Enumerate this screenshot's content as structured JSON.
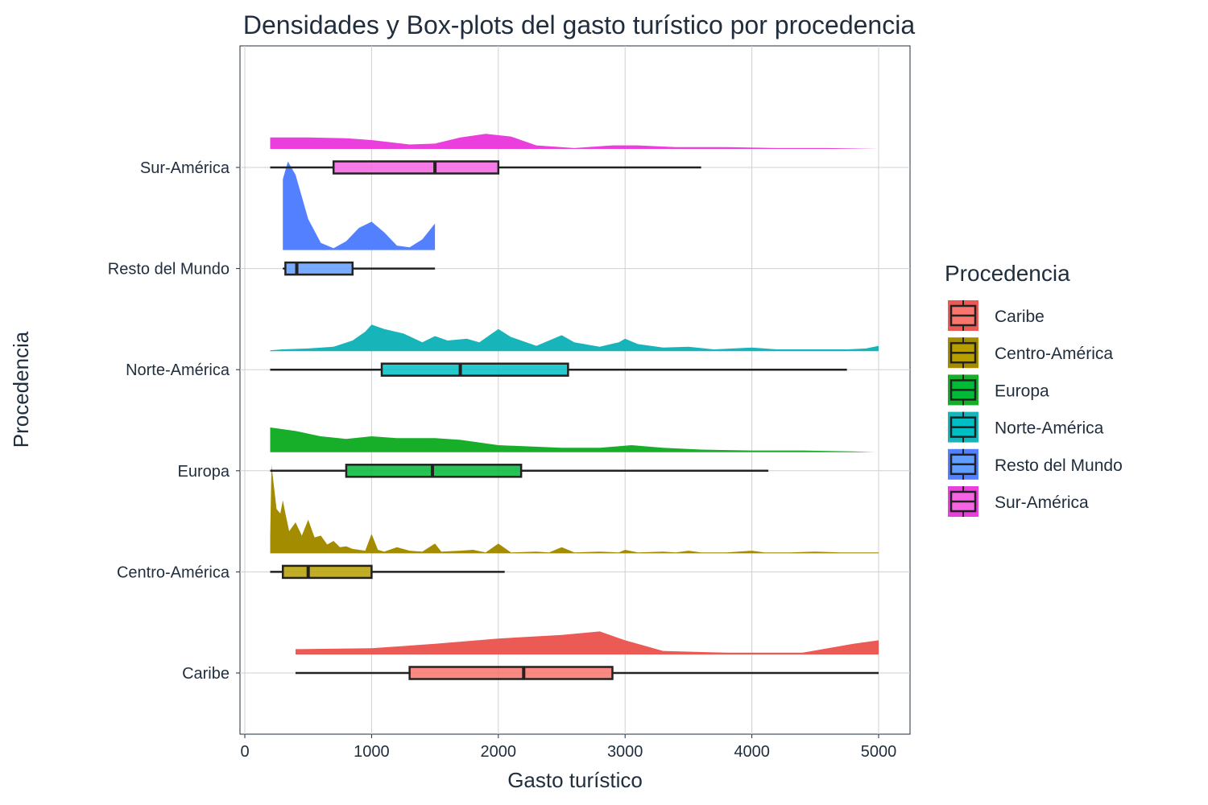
{
  "chart_data": {
    "type": "ridgeline-boxplot",
    "title": "Densidades y Box-plots del gasto turístico por procedencia",
    "xlabel": "Gasto turístico",
    "ylabel": "Procedencia",
    "xlim": [
      0,
      5000
    ],
    "x_ticks": [
      0,
      1000,
      2000,
      3000,
      4000,
      5000
    ],
    "x_tick_labels": [
      "0",
      "1000",
      "2000",
      "3000",
      "4000",
      "5000"
    ],
    "grid": true,
    "legend": {
      "title": "Procedencia",
      "placement": "right",
      "entries": [
        "Caribe",
        "Centro-América",
        "Europa",
        "Norte-América",
        "Resto del Mundo",
        "Sur-América"
      ]
    },
    "categories": [
      "Caribe",
      "Centro-América",
      "Europa",
      "Norte-América",
      "Resto del Mundo",
      "Sur-América"
    ],
    "series": [
      {
        "name": "Caribe",
        "color": "#F8766D",
        "fill": "#EB5A55",
        "box": {
          "whisker_low": 400,
          "q1": 1300,
          "median": 2200,
          "q3": 2900,
          "whisker_high": 5000
        },
        "density": [
          [
            400,
            0.06
          ],
          [
            1000,
            0.07
          ],
          [
            1500,
            0.12
          ],
          [
            2000,
            0.18
          ],
          [
            2500,
            0.22
          ],
          [
            2800,
            0.26
          ],
          [
            3000,
            0.16
          ],
          [
            3300,
            0.04
          ],
          [
            3800,
            0.02
          ],
          [
            4400,
            0.02
          ],
          [
            4800,
            0.12
          ],
          [
            5000,
            0.16
          ]
        ]
      },
      {
        "name": "Centro-América",
        "color": "#B79F00",
        "fill": "#A38C00",
        "box": {
          "whisker_low": 200,
          "q1": 300,
          "median": 500,
          "q3": 1000,
          "whisker_high": 2050
        },
        "density": [
          [
            200,
            0.2
          ],
          [
            210,
            1.0
          ],
          [
            250,
            0.5
          ],
          [
            280,
            0.45
          ],
          [
            300,
            0.6
          ],
          [
            320,
            0.45
          ],
          [
            350,
            0.25
          ],
          [
            400,
            0.35
          ],
          [
            450,
            0.2
          ],
          [
            500,
            0.38
          ],
          [
            550,
            0.18
          ],
          [
            600,
            0.2
          ],
          [
            650,
            0.1
          ],
          [
            700,
            0.14
          ],
          [
            750,
            0.07
          ],
          [
            800,
            0.08
          ],
          [
            850,
            0.05
          ],
          [
            900,
            0.04
          ],
          [
            950,
            0.03
          ],
          [
            1000,
            0.22
          ],
          [
            1050,
            0.04
          ],
          [
            1100,
            0.02
          ],
          [
            1200,
            0.07
          ],
          [
            1300,
            0.03
          ],
          [
            1400,
            0.02
          ],
          [
            1500,
            0.11
          ],
          [
            1550,
            0.02
          ],
          [
            1700,
            0.03
          ],
          [
            1800,
            0.04
          ],
          [
            1900,
            0.01
          ],
          [
            2000,
            0.11
          ],
          [
            2100,
            0.01
          ],
          [
            2300,
            0.02
          ],
          [
            2400,
            0.01
          ],
          [
            2500,
            0.07
          ],
          [
            2600,
            0.01
          ],
          [
            2800,
            0.02
          ],
          [
            2950,
            0.01
          ],
          [
            3000,
            0.04
          ],
          [
            3100,
            0.01
          ],
          [
            3300,
            0.02
          ],
          [
            3400,
            0.01
          ],
          [
            3500,
            0.03
          ],
          [
            3600,
            0.01
          ],
          [
            3800,
            0.01
          ],
          [
            4000,
            0.03
          ],
          [
            4100,
            0.01
          ],
          [
            4300,
            0.01
          ],
          [
            4500,
            0.02
          ],
          [
            4700,
            0.01
          ],
          [
            5000,
            0.01
          ]
        ]
      },
      {
        "name": "Europa",
        "color": "#00BA38",
        "fill": "#17AE2A",
        "box": {
          "whisker_low": 200,
          "q1": 800,
          "median": 1480,
          "q3": 2180,
          "whisker_high": 4130
        },
        "density": [
          [
            200,
            0.28
          ],
          [
            400,
            0.24
          ],
          [
            600,
            0.18
          ],
          [
            800,
            0.15
          ],
          [
            1000,
            0.18
          ],
          [
            1200,
            0.16
          ],
          [
            1500,
            0.16
          ],
          [
            1700,
            0.14
          ],
          [
            2000,
            0.08
          ],
          [
            2500,
            0.05
          ],
          [
            2800,
            0.05
          ],
          [
            3050,
            0.08
          ],
          [
            3300,
            0.05
          ],
          [
            3600,
            0.03
          ],
          [
            4000,
            0.02
          ],
          [
            4400,
            0.02
          ],
          [
            4800,
            0.01
          ],
          [
            4970,
            0
          ]
        ]
      },
      {
        "name": "Norte-América",
        "color": "#00BFC4",
        "fill": "#17B5B9",
        "box": {
          "whisker_low": 200,
          "q1": 1080,
          "median": 1700,
          "q3": 2550,
          "whisker_high": 4750
        },
        "density": [
          [
            200,
            0.01
          ],
          [
            300,
            0.02
          ],
          [
            500,
            0.03
          ],
          [
            700,
            0.05
          ],
          [
            850,
            0.12
          ],
          [
            950,
            0.22
          ],
          [
            1000,
            0.3
          ],
          [
            1100,
            0.25
          ],
          [
            1250,
            0.2
          ],
          [
            1400,
            0.1
          ],
          [
            1500,
            0.17
          ],
          [
            1600,
            0.12
          ],
          [
            1750,
            0.14
          ],
          [
            1850,
            0.1
          ],
          [
            1950,
            0.2
          ],
          [
            2000,
            0.25
          ],
          [
            2100,
            0.16
          ],
          [
            2300,
            0.06
          ],
          [
            2500,
            0.18
          ],
          [
            2600,
            0.1
          ],
          [
            2800,
            0.05
          ],
          [
            2950,
            0.1
          ],
          [
            3000,
            0.14
          ],
          [
            3100,
            0.08
          ],
          [
            3300,
            0.04
          ],
          [
            3500,
            0.05
          ],
          [
            3700,
            0.02
          ],
          [
            4000,
            0.04
          ],
          [
            4200,
            0.02
          ],
          [
            4500,
            0.02
          ],
          [
            4750,
            0.02
          ],
          [
            4900,
            0.03
          ],
          [
            5000,
            0.06
          ]
        ]
      },
      {
        "name": "Resto del Mundo",
        "color": "#619CFF",
        "fill": "#5380FF",
        "box": {
          "whisker_low": 300,
          "q1": 320,
          "median": 410,
          "q3": 850,
          "whisker_high": 1500
        },
        "density": [
          [
            300,
            0.8
          ],
          [
            340,
            1.0
          ],
          [
            400,
            0.85
          ],
          [
            500,
            0.35
          ],
          [
            600,
            0.08
          ],
          [
            700,
            0.02
          ],
          [
            800,
            0.1
          ],
          [
            900,
            0.25
          ],
          [
            1000,
            0.32
          ],
          [
            1100,
            0.2
          ],
          [
            1200,
            0.05
          ],
          [
            1300,
            0.03
          ],
          [
            1400,
            0.12
          ],
          [
            1500,
            0.3
          ]
        ]
      },
      {
        "name": "Sur-América",
        "color": "#F564E3",
        "fill": "#EA3FDC",
        "box": {
          "whisker_low": 200,
          "q1": 700,
          "median": 1500,
          "q3": 2000,
          "whisker_high": 3600
        },
        "density": [
          [
            200,
            0.13
          ],
          [
            500,
            0.13
          ],
          [
            800,
            0.12
          ],
          [
            1000,
            0.1
          ],
          [
            1300,
            0.05
          ],
          [
            1500,
            0.06
          ],
          [
            1700,
            0.13
          ],
          [
            1900,
            0.17
          ],
          [
            2100,
            0.14
          ],
          [
            2300,
            0.04
          ],
          [
            2600,
            0.01
          ],
          [
            2900,
            0.04
          ],
          [
            3100,
            0.04
          ],
          [
            3400,
            0.02
          ],
          [
            3800,
            0.02
          ],
          [
            4200,
            0.01
          ],
          [
            4600,
            0.01
          ],
          [
            5000,
            0
          ]
        ]
      }
    ]
  }
}
